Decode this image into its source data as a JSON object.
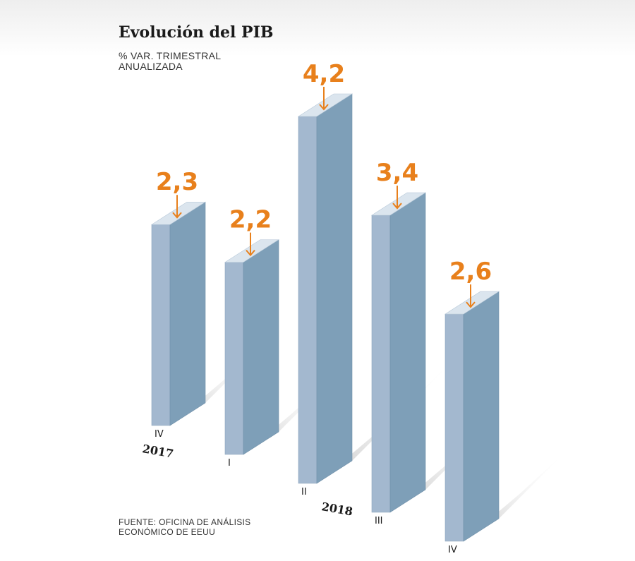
{
  "chart_data": {
    "type": "bar",
    "title": "Evolución del PIB",
    "subtitle": "% VAR. TRIMESTRAL ANUALIZADA",
    "source": "FUENTE: OFICINA DE ANÁLISIS ECONÓMICO DE EEUU",
    "categories": [
      "IV",
      "I",
      "II",
      "III",
      "IV"
    ],
    "values": [
      2.3,
      2.2,
      4.2,
      3.4,
      2.6
    ],
    "value_labels": [
      "2,3",
      "2,2",
      "4,2",
      "3,4",
      "2,6"
    ],
    "year_labels": [
      {
        "label": "2017",
        "bar_index": 0
      },
      {
        "label": "2018",
        "bar_index": 3
      }
    ],
    "ylim": [
      0,
      4.2
    ],
    "grid": false,
    "legend": "none",
    "colors": {
      "bar_front": "#a3b8cf",
      "bar_side": "#7e9fb8",
      "bar_top": "#dbe5ee",
      "label": "#e8801c",
      "shadow": "#c6c6c6",
      "text": "#1a1a1a"
    }
  }
}
